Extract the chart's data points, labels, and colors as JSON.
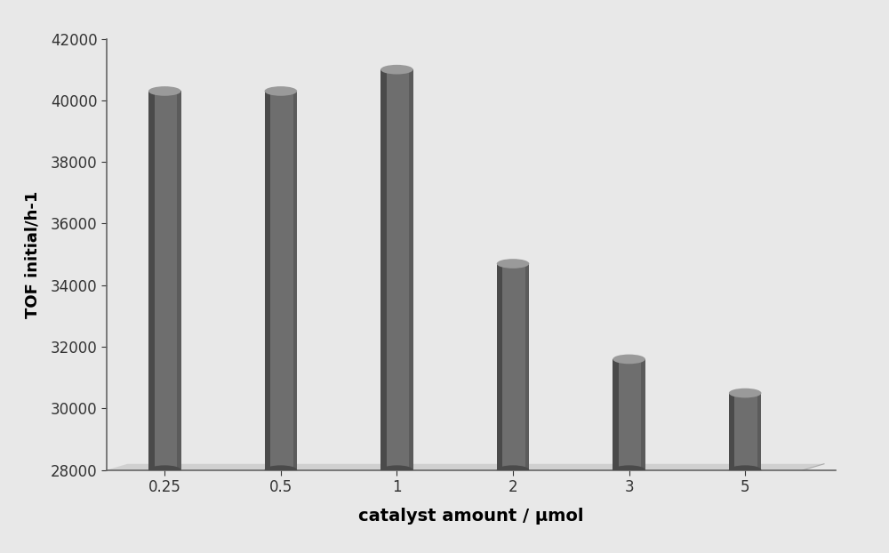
{
  "categories": [
    "0.25",
    "0.5",
    "1",
    "2",
    "3",
    "5"
  ],
  "values": [
    40300,
    40300,
    41000,
    34700,
    31600,
    30500
  ],
  "bar_face_color": "#6e6e6e",
  "bar_top_color": "#9a9a9a",
  "bar_shadow_color": "#4a4a4a",
  "background_color": "#e8e8e8",
  "plot_bg_color": "#e8e8e8",
  "floor_color": "#d0d0d0",
  "xlabel": "catalyst amount / μmol",
  "ylabel": "TOF initial/h-1",
  "ylim": [
    28000,
    42000
  ],
  "yticks": [
    28000,
    30000,
    32000,
    34000,
    36000,
    38000,
    40000,
    42000
  ],
  "xlabel_fontsize": 14,
  "ylabel_fontsize": 13,
  "tick_fontsize": 12,
  "bar_width": 0.28,
  "floor_value": 28000,
  "floor_depth": 400,
  "floor_shift": 0.18
}
